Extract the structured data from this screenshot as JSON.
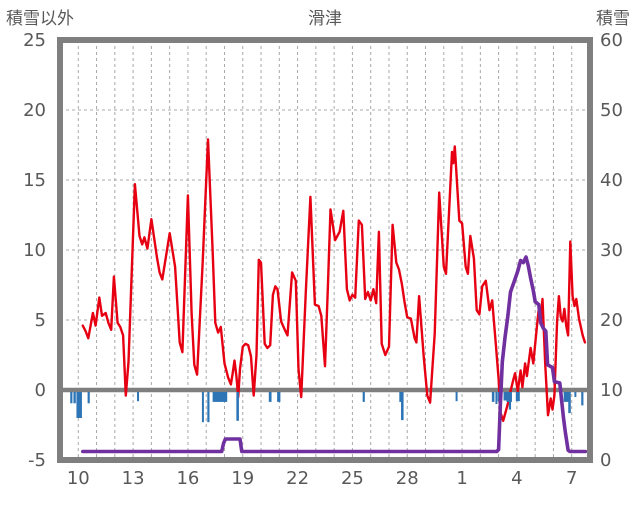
{
  "page": {
    "background": "#ffffff"
  },
  "chart_data": {
    "type": "line",
    "title": "滑津",
    "left_axis": {
      "title": "積雪以外",
      "tick_values": [
        25,
        20,
        15,
        10,
        5,
        0,
        -5
      ],
      "tick_labels": [
        "25",
        "20",
        "15",
        "10",
        "5",
        "0",
        "-5"
      ],
      "range": [
        -5,
        25
      ]
    },
    "right_axis": {
      "title": "積雪",
      "tick_values": [
        60,
        50,
        40,
        30,
        20,
        10,
        0
      ],
      "tick_labels": [
        "60",
        "50",
        "40",
        "30",
        "20",
        "10",
        "0"
      ],
      "range": [
        0,
        60
      ]
    },
    "x_axis": {
      "range_days": [
        9,
        38
      ],
      "gridline_every_day": true,
      "tick_days": [
        10,
        13,
        16,
        19,
        22,
        25,
        28,
        31,
        34,
        37
      ],
      "tick_labels": [
        "10",
        "13",
        "16",
        "19",
        "22",
        "25",
        "28",
        "1",
        "4",
        "7"
      ]
    },
    "grid": {
      "color": "#a8a8a8",
      "dash": "3,3"
    },
    "frame_color": "#7f7f7f",
    "zero_line_color": "#7f7f7f",
    "series": [
      {
        "name": "non-snow-red-line",
        "kind": "line",
        "axis": "left",
        "color": "#e60012",
        "width": 2.4,
        "points": [
          [
            10.25,
            4.6
          ],
          [
            10.4,
            4.2
          ],
          [
            10.55,
            3.7
          ],
          [
            10.8,
            5.5
          ],
          [
            10.95,
            4.6
          ],
          [
            11.15,
            6.6
          ],
          [
            11.3,
            5.3
          ],
          [
            11.5,
            5.5
          ],
          [
            11.65,
            4.8
          ],
          [
            11.8,
            4.3
          ],
          [
            11.95,
            8.1
          ],
          [
            12.15,
            4.8
          ],
          [
            12.3,
            4.5
          ],
          [
            12.45,
            3.9
          ],
          [
            12.6,
            -0.4
          ],
          [
            12.75,
            2.0
          ],
          [
            13.1,
            14.7
          ],
          [
            13.35,
            11.0
          ],
          [
            13.5,
            10.4
          ],
          [
            13.62,
            10.9
          ],
          [
            13.78,
            10.1
          ],
          [
            14.0,
            12.2
          ],
          [
            14.3,
            9.5
          ],
          [
            14.45,
            8.4
          ],
          [
            14.6,
            7.9
          ],
          [
            15.0,
            11.2
          ],
          [
            15.3,
            8.8
          ],
          [
            15.55,
            3.4
          ],
          [
            15.7,
            2.7
          ],
          [
            16.0,
            13.9
          ],
          [
            16.2,
            5.5
          ],
          [
            16.35,
            1.8
          ],
          [
            16.5,
            1.1
          ],
          [
            16.8,
            9.0
          ],
          [
            17.1,
            17.9
          ],
          [
            17.35,
            10.0
          ],
          [
            17.5,
            4.8
          ],
          [
            17.65,
            4.1
          ],
          [
            17.8,
            4.5
          ],
          [
            18.0,
            1.9
          ],
          [
            18.2,
            0.9
          ],
          [
            18.35,
            0.4
          ],
          [
            18.45,
            1.2
          ],
          [
            18.55,
            2.1
          ],
          [
            18.65,
            1.0
          ],
          [
            18.75,
            -0.5
          ],
          [
            18.85,
            1.5
          ],
          [
            19.0,
            3.1
          ],
          [
            19.15,
            3.3
          ],
          [
            19.3,
            3.2
          ],
          [
            19.45,
            2.4
          ],
          [
            19.6,
            -0.4
          ],
          [
            19.75,
            2.5
          ],
          [
            19.88,
            9.3
          ],
          [
            20.0,
            9.1
          ],
          [
            20.2,
            3.3
          ],
          [
            20.35,
            3.0
          ],
          [
            20.5,
            3.2
          ],
          [
            20.65,
            6.8
          ],
          [
            20.78,
            7.4
          ],
          [
            20.9,
            7.2
          ],
          [
            21.1,
            4.9
          ],
          [
            21.3,
            4.3
          ],
          [
            21.45,
            3.9
          ],
          [
            21.7,
            8.4
          ],
          [
            21.9,
            7.8
          ],
          [
            22.05,
            1.5
          ],
          [
            22.2,
            -0.5
          ],
          [
            22.45,
            7.0
          ],
          [
            22.7,
            13.8
          ],
          [
            22.95,
            6.1
          ],
          [
            23.15,
            6.0
          ],
          [
            23.3,
            5.3
          ],
          [
            23.5,
            1.7
          ],
          [
            23.65,
            7.0
          ],
          [
            23.8,
            12.9
          ],
          [
            24.05,
            10.7
          ],
          [
            24.3,
            11.3
          ],
          [
            24.5,
            12.8
          ],
          [
            24.7,
            7.2
          ],
          [
            24.85,
            6.4
          ],
          [
            25.0,
            6.8
          ],
          [
            25.15,
            6.6
          ],
          [
            25.35,
            12.1
          ],
          [
            25.52,
            11.8
          ],
          [
            25.7,
            6.5
          ],
          [
            25.85,
            7.0
          ],
          [
            26.0,
            6.4
          ],
          [
            26.15,
            7.2
          ],
          [
            26.3,
            6.2
          ],
          [
            26.45,
            11.3
          ],
          [
            26.6,
            3.3
          ],
          [
            26.8,
            2.5
          ],
          [
            27.0,
            3.1
          ],
          [
            27.2,
            11.8
          ],
          [
            27.4,
            9.1
          ],
          [
            27.55,
            8.6
          ],
          [
            27.7,
            7.6
          ],
          [
            27.85,
            6.3
          ],
          [
            28.0,
            5.2
          ],
          [
            28.2,
            5.1
          ],
          [
            28.4,
            3.7
          ],
          [
            28.5,
            3.4
          ],
          [
            28.65,
            6.7
          ],
          [
            28.9,
            2.4
          ],
          [
            29.1,
            -0.4
          ],
          [
            29.25,
            -0.9
          ],
          [
            29.5,
            4.0
          ],
          [
            29.75,
            14.1
          ],
          [
            30.0,
            8.8
          ],
          [
            30.12,
            8.3
          ],
          [
            30.45,
            17.0
          ],
          [
            30.52,
            16.2
          ],
          [
            30.6,
            17.4
          ],
          [
            30.85,
            12.1
          ],
          [
            31.0,
            11.9
          ],
          [
            31.2,
            8.8
          ],
          [
            31.32,
            8.3
          ],
          [
            31.45,
            11.0
          ],
          [
            31.65,
            9.4
          ],
          [
            31.8,
            5.7
          ],
          [
            31.95,
            5.4
          ],
          [
            32.1,
            7.4
          ],
          [
            32.3,
            7.8
          ],
          [
            32.5,
            5.7
          ],
          [
            32.65,
            6.4
          ],
          [
            32.85,
            3.2
          ],
          [
            33.0,
            0.8
          ],
          [
            33.1,
            -1.6
          ],
          [
            33.25,
            -2.2
          ],
          [
            33.5,
            -1.0
          ],
          [
            33.65,
            -0.1
          ],
          [
            33.8,
            0.7
          ],
          [
            33.9,
            1.2
          ],
          [
            34.05,
            -0.1
          ],
          [
            34.2,
            1.4
          ],
          [
            34.3,
            0.2
          ],
          [
            34.45,
            1.9
          ],
          [
            34.55,
            1.0
          ],
          [
            34.75,
            3.0
          ],
          [
            34.9,
            1.9
          ],
          [
            35.1,
            4.6
          ],
          [
            35.2,
            5.8
          ],
          [
            35.3,
            4.9
          ],
          [
            35.4,
            6.5
          ],
          [
            35.55,
            1.9
          ],
          [
            35.7,
            -1.8
          ],
          [
            35.85,
            -0.6
          ],
          [
            35.95,
            -1.4
          ],
          [
            36.05,
            -0.4
          ],
          [
            36.2,
            4.9
          ],
          [
            36.3,
            6.7
          ],
          [
            36.4,
            5.2
          ],
          [
            36.5,
            4.9
          ],
          [
            36.6,
            5.8
          ],
          [
            36.7,
            4.6
          ],
          [
            36.8,
            3.9
          ],
          [
            36.92,
            10.6
          ],
          [
            37.05,
            6.7
          ],
          [
            37.15,
            6.0
          ],
          [
            37.25,
            6.5
          ],
          [
            37.4,
            5.1
          ],
          [
            37.6,
            3.9
          ],
          [
            37.72,
            3.4
          ]
        ]
      },
      {
        "name": "non-snow-blue-bars",
        "kind": "bar",
        "axis": "left",
        "color": "#2e75b6",
        "bars": [
          [
            9.62,
            -0.95,
            0.12
          ],
          [
            9.8,
            -0.95,
            0.13
          ],
          [
            10.05,
            -2.0,
            0.3
          ],
          [
            10.57,
            -0.95,
            0.12
          ],
          [
            13.27,
            -0.8,
            0.1
          ],
          [
            16.82,
            -2.3,
            0.1
          ],
          [
            17.12,
            -2.3,
            0.12
          ],
          [
            17.75,
            -0.85,
            0.8
          ],
          [
            18.72,
            -2.2,
            0.14
          ],
          [
            20.5,
            -0.85,
            0.15
          ],
          [
            20.97,
            -0.85,
            0.18
          ],
          [
            25.62,
            -0.85,
            0.12
          ],
          [
            27.62,
            -0.85,
            0.1
          ],
          [
            27.73,
            -2.15,
            0.14
          ],
          [
            30.7,
            -0.8,
            0.1
          ],
          [
            32.7,
            -0.85,
            0.14
          ],
          [
            32.88,
            -1.0,
            0.1
          ],
          [
            33.05,
            -0.8,
            0.2
          ],
          [
            33.38,
            -0.75,
            0.22
          ],
          [
            33.58,
            -0.85,
            0.3
          ],
          [
            33.62,
            -1.4,
            0.12
          ],
          [
            34.05,
            -0.8,
            0.22
          ],
          [
            36.7,
            -0.85,
            0.28
          ],
          [
            36.88,
            -1.65,
            0.14
          ],
          [
            37.2,
            -0.5,
            0.1
          ],
          [
            37.58,
            -1.1,
            0.12
          ]
        ]
      },
      {
        "name": "snow-depth-purple-line",
        "kind": "line",
        "axis": "right",
        "color": "#7030a0",
        "width": 3.6,
        "points": [
          [
            10.25,
            0
          ],
          [
            17.85,
            0
          ],
          [
            17.95,
            2.4
          ],
          [
            18.05,
            3.0
          ],
          [
            18.85,
            3.0
          ],
          [
            18.95,
            1.0
          ],
          [
            19.05,
            0
          ],
          [
            32.9,
            0
          ],
          [
            33.0,
            1.5
          ],
          [
            33.1,
            8.0
          ],
          [
            33.2,
            14.0
          ],
          [
            33.35,
            17.5
          ],
          [
            33.5,
            20.5
          ],
          [
            33.65,
            24.0
          ],
          [
            33.85,
            25.5
          ],
          [
            34.05,
            27.0
          ],
          [
            34.2,
            28.5
          ],
          [
            34.35,
            28.2
          ],
          [
            34.5,
            29.0
          ],
          [
            34.62,
            27.8
          ],
          [
            34.75,
            26.0
          ],
          [
            34.9,
            24.2
          ],
          [
            35.0,
            22.6
          ],
          [
            35.2,
            22.2
          ],
          [
            35.3,
            19.6
          ],
          [
            35.45,
            18.8
          ],
          [
            35.58,
            18.4
          ],
          [
            35.68,
            13.6
          ],
          [
            35.95,
            13.2
          ],
          [
            36.05,
            11.2
          ],
          [
            36.35,
            11.0
          ],
          [
            36.45,
            8.4
          ],
          [
            36.55,
            6.0
          ],
          [
            36.65,
            4.0
          ],
          [
            36.8,
            1.4
          ],
          [
            36.9,
            0
          ],
          [
            37.75,
            0
          ]
        ]
      }
    ]
  }
}
